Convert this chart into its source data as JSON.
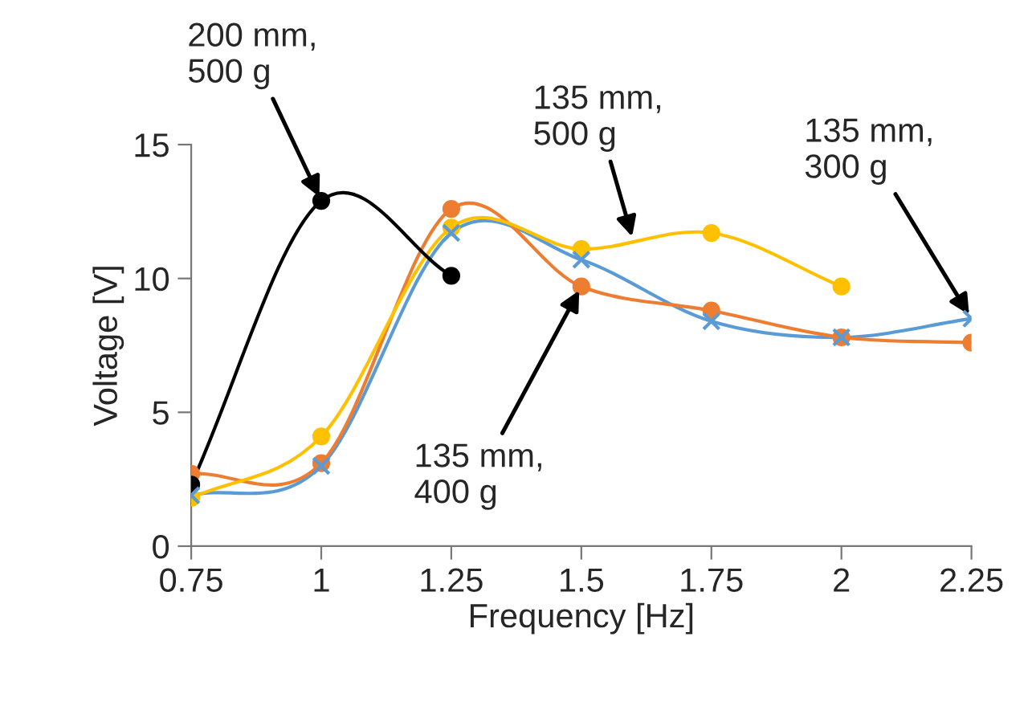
{
  "chart_data": {
    "type": "line",
    "xlabel": "Frequency [Hz]",
    "ylabel": "Voltage [V]",
    "xlim": [
      0.75,
      2.25
    ],
    "xticks": [
      0.75,
      1,
      1.25,
      1.5,
      1.75,
      2,
      2.25
    ],
    "ylim": [
      0,
      15
    ],
    "yticks": [
      0,
      5,
      10,
      15
    ],
    "grid": false,
    "legend": false,
    "line_style": "solid",
    "series": [
      {
        "color": "#5b9bd5",
        "marker": "cross",
        "x": [
          0.75,
          1,
          1.25,
          1.5,
          1.75,
          2,
          2.25
        ],
        "values": [
          1.9,
          3.0,
          11.7,
          10.7,
          8.4,
          7.8,
          8.5
        ]
      },
      {
        "color": "#ed7d31",
        "marker": "circle",
        "x": [
          0.75,
          1,
          1.25,
          1.5,
          1.75,
          2,
          2.25
        ],
        "values": [
          2.7,
          3.1,
          12.6,
          9.7,
          8.8,
          7.8,
          7.6
        ]
      },
      {
        "color": "#ffc000",
        "marker": "circle",
        "x": [
          0.75,
          1,
          1.25,
          1.5,
          1.75,
          2
        ],
        "values": [
          1.8,
          4.1,
          11.9,
          11.1,
          11.7,
          9.7
        ]
      },
      {
        "color": "#000000",
        "marker": "circle",
        "x": [
          0.75,
          1,
          1.25
        ],
        "values": [
          2.3,
          12.9,
          10.1
        ]
      }
    ],
    "annotations": [
      {
        "text": "200 mm,\n500 g",
        "x": 1,
        "y": 12.9
      },
      {
        "text": "135 mm,\n500 g",
        "x": 1.6,
        "y": 11.4
      },
      {
        "text": "135 mm,\n300 g",
        "x": 2.25,
        "y": 8.5
      },
      {
        "text": "135 mm,\n400 g",
        "x": 1.5,
        "y": 9.7
      }
    ]
  }
}
